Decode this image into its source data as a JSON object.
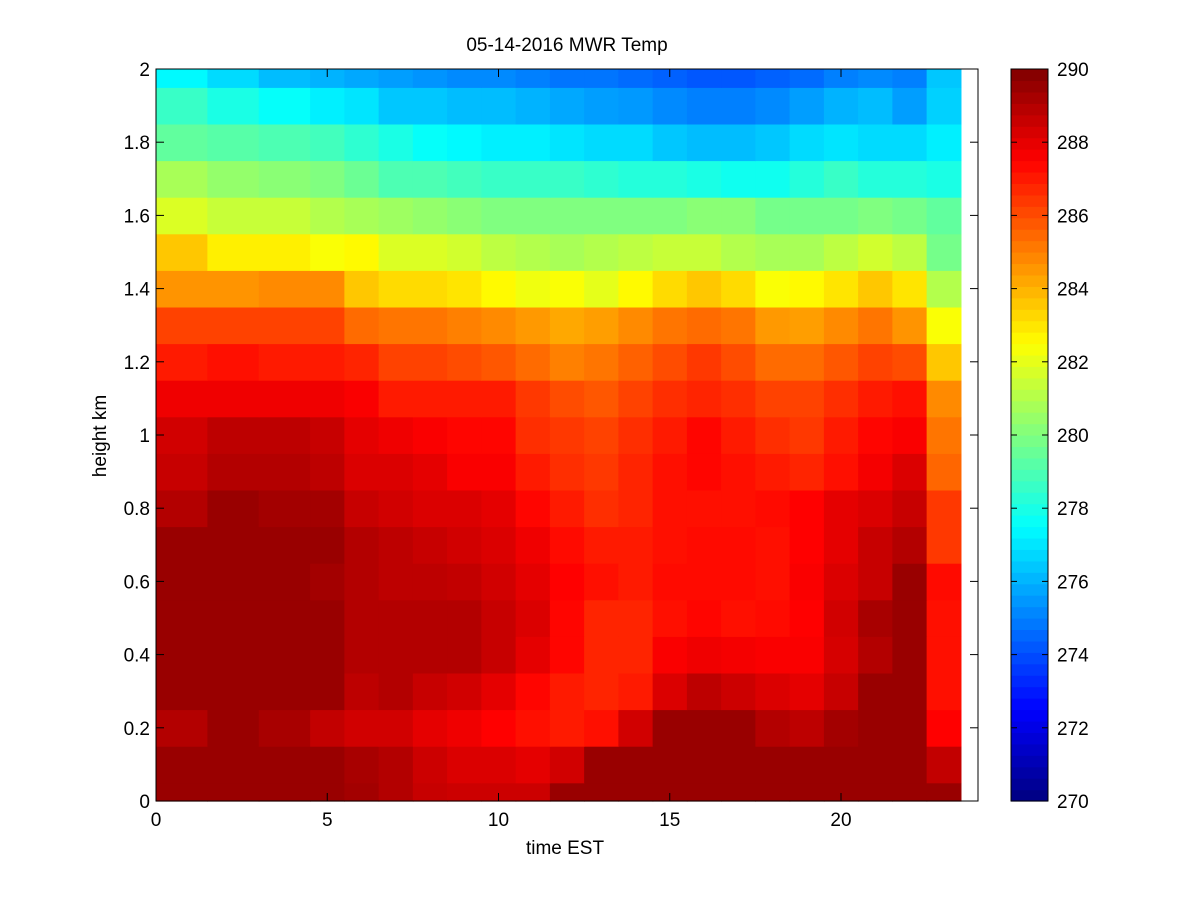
{
  "chart_data": {
    "type": "heatmap",
    "title": "05-14-2016 MWR Temp",
    "xlabel": "time EST",
    "ylabel": "height km",
    "xlim": [
      0,
      24
    ],
    "ylim": [
      0,
      2
    ],
    "xticks": [
      0,
      5,
      10,
      15,
      20
    ],
    "yticks": [
      0,
      0.2,
      0.4,
      0.6,
      0.8,
      1,
      1.2,
      1.4,
      1.6,
      1.8,
      2
    ],
    "colorbar": {
      "clim": [
        270,
        290
      ],
      "ticks": [
        270,
        272,
        274,
        276,
        278,
        280,
        282,
        284,
        286,
        288,
        290
      ],
      "colormap": "jet"
    },
    "x_edges": [
      0,
      1.5,
      3,
      4.5,
      5.5,
      6.5,
      7.5,
      8.5,
      9.5,
      10.5,
      11.5,
      12.5,
      13.5,
      14.5,
      15.5,
      16.5,
      17.5,
      18.5,
      19.5,
      20.5,
      21.5,
      22.5,
      23.5
    ],
    "y_edges": [
      0,
      0.05,
      0.15,
      0.25,
      0.35,
      0.45,
      0.55,
      0.65,
      0.75,
      0.85,
      0.95,
      1.05,
      1.15,
      1.25,
      1.35,
      1.45,
      1.55,
      1.65,
      1.75,
      1.85,
      1.95,
      2.0
    ],
    "values": [
      [
        289.5,
        289.5,
        289.5,
        289.5,
        289.3,
        289.0,
        288.6,
        288.5,
        288.5,
        288.5,
        289.5,
        289.5,
        289.5,
        289.5,
        289.5,
        289.5,
        289.5,
        289.5,
        289.5,
        289.5,
        289.5,
        289.5
      ],
      [
        289.5,
        289.5,
        289.5,
        289.5,
        289.2,
        289.0,
        288.5,
        288.2,
        288.2,
        288.0,
        288.4,
        289.5,
        289.5,
        289.5,
        289.5,
        289.5,
        289.5,
        289.5,
        289.5,
        289.5,
        289.5,
        288.7
      ],
      [
        289.0,
        289.5,
        289.2,
        288.7,
        288.4,
        288.4,
        288.0,
        287.8,
        287.5,
        287.2,
        287.0,
        287.2,
        288.4,
        289.5,
        289.5,
        289.5,
        289.0,
        288.8,
        289.3,
        289.5,
        289.5,
        287.5
      ],
      [
        289.5,
        289.5,
        289.5,
        289.5,
        288.8,
        289.0,
        288.6,
        288.4,
        288.0,
        287.4,
        287.0,
        286.8,
        287.0,
        288.2,
        288.8,
        288.5,
        288.2,
        288.0,
        288.6,
        289.5,
        289.5,
        287.2
      ],
      [
        289.5,
        289.5,
        289.5,
        289.5,
        289.0,
        289.0,
        289.0,
        289.0,
        288.6,
        288.0,
        287.4,
        286.8,
        286.8,
        287.6,
        287.8,
        287.7,
        287.6,
        287.6,
        288.3,
        289.0,
        289.5,
        287.2
      ],
      [
        289.5,
        289.5,
        289.5,
        289.5,
        289.0,
        289.0,
        289.0,
        289.0,
        288.6,
        288.2,
        287.4,
        286.8,
        286.8,
        287.2,
        287.4,
        287.2,
        287.3,
        287.5,
        288.4,
        289.2,
        289.5,
        287.2
      ],
      [
        289.5,
        289.5,
        289.5,
        289.3,
        289.0,
        288.8,
        288.8,
        288.7,
        288.4,
        288.0,
        287.5,
        287.2,
        287.0,
        287.3,
        287.3,
        287.3,
        287.2,
        287.6,
        288.2,
        288.6,
        289.5,
        287.3
      ],
      [
        289.5,
        289.5,
        289.5,
        289.5,
        289.0,
        288.8,
        288.6,
        288.4,
        288.2,
        287.8,
        287.3,
        287.0,
        287.0,
        287.2,
        287.3,
        287.3,
        287.2,
        287.5,
        288.0,
        288.6,
        289.0,
        286.4
      ],
      [
        289.0,
        289.5,
        289.3,
        289.3,
        288.6,
        288.4,
        288.2,
        288.2,
        288.0,
        287.4,
        287.0,
        286.6,
        286.8,
        287.2,
        287.2,
        287.2,
        287.3,
        287.5,
        288.0,
        288.2,
        288.6,
        286.4
      ],
      [
        288.6,
        289.0,
        289.0,
        288.8,
        288.2,
        288.2,
        288.0,
        287.6,
        287.6,
        287.0,
        286.6,
        286.4,
        286.8,
        287.2,
        287.4,
        287.2,
        287.0,
        286.8,
        287.2,
        287.7,
        288.2,
        285.5
      ],
      [
        288.4,
        288.8,
        288.8,
        288.6,
        288.0,
        287.8,
        287.6,
        287.4,
        287.4,
        286.6,
        286.4,
        286.2,
        286.6,
        287.0,
        287.4,
        287.0,
        286.6,
        286.4,
        287.0,
        287.4,
        287.6,
        285.2
      ],
      [
        287.8,
        287.8,
        287.8,
        287.8,
        287.6,
        287.0,
        287.0,
        287.0,
        287.0,
        286.4,
        286.0,
        285.8,
        286.2,
        286.6,
        286.8,
        286.6,
        286.2,
        286.2,
        286.6,
        287.0,
        287.2,
        284.8
      ],
      [
        287.0,
        287.2,
        287.0,
        287.0,
        286.8,
        286.2,
        286.2,
        286.0,
        285.8,
        285.4,
        285.0,
        285.2,
        285.6,
        286.0,
        286.4,
        286.0,
        285.4,
        285.4,
        285.8,
        286.2,
        286.0,
        283.6
      ],
      [
        286.2,
        286.2,
        286.2,
        286.2,
        285.4,
        285.2,
        285.2,
        285.0,
        284.8,
        284.5,
        284.2,
        284.4,
        284.8,
        285.2,
        285.4,
        285.2,
        284.5,
        284.4,
        284.8,
        285.2,
        284.6,
        282.4
      ],
      [
        284.6,
        284.6,
        284.8,
        284.8,
        283.6,
        283.2,
        283.2,
        283.0,
        282.6,
        282.2,
        282.4,
        282.0,
        282.6,
        283.2,
        283.6,
        283.2,
        282.4,
        282.6,
        283.0,
        283.6,
        283.0,
        281.0
      ],
      [
        283.6,
        282.8,
        282.8,
        282.4,
        282.6,
        281.8,
        281.8,
        281.6,
        281.2,
        281.0,
        280.8,
        281.0,
        281.2,
        281.4,
        281.4,
        281.0,
        280.8,
        280.8,
        281.2,
        281.6,
        281.2,
        279.8
      ],
      [
        281.8,
        281.4,
        281.4,
        281.0,
        280.8,
        280.6,
        280.4,
        280.2,
        280.0,
        280.0,
        280.0,
        280.0,
        280.0,
        280.0,
        280.2,
        280.2,
        279.8,
        279.8,
        279.8,
        280.0,
        279.8,
        279.4
      ],
      [
        280.8,
        280.4,
        280.2,
        280.0,
        279.6,
        279.0,
        279.0,
        278.8,
        278.6,
        278.6,
        278.6,
        278.4,
        278.2,
        278.2,
        278.0,
        277.8,
        277.8,
        278.2,
        278.6,
        278.2,
        278.2,
        278.0
      ],
      [
        279.4,
        279.2,
        279.0,
        278.8,
        278.4,
        278.0,
        277.6,
        277.4,
        277.2,
        277.2,
        277.0,
        276.8,
        276.8,
        276.4,
        276.2,
        276.2,
        276.4,
        276.8,
        277.0,
        276.8,
        276.8,
        277.2
      ],
      [
        278.6,
        278.0,
        277.6,
        277.2,
        277.0,
        276.4,
        276.4,
        276.2,
        276.2,
        276.0,
        275.8,
        275.6,
        275.5,
        275.2,
        275.0,
        275.0,
        275.2,
        275.6,
        276.0,
        276.2,
        275.6,
        276.6
      ],
      [
        277.4,
        276.8,
        276.2,
        276.0,
        275.8,
        275.6,
        275.4,
        275.2,
        275.2,
        275.0,
        274.8,
        274.8,
        274.6,
        274.4,
        274.2,
        274.2,
        274.4,
        274.6,
        275.0,
        275.2,
        275.0,
        276.4
      ]
    ]
  }
}
